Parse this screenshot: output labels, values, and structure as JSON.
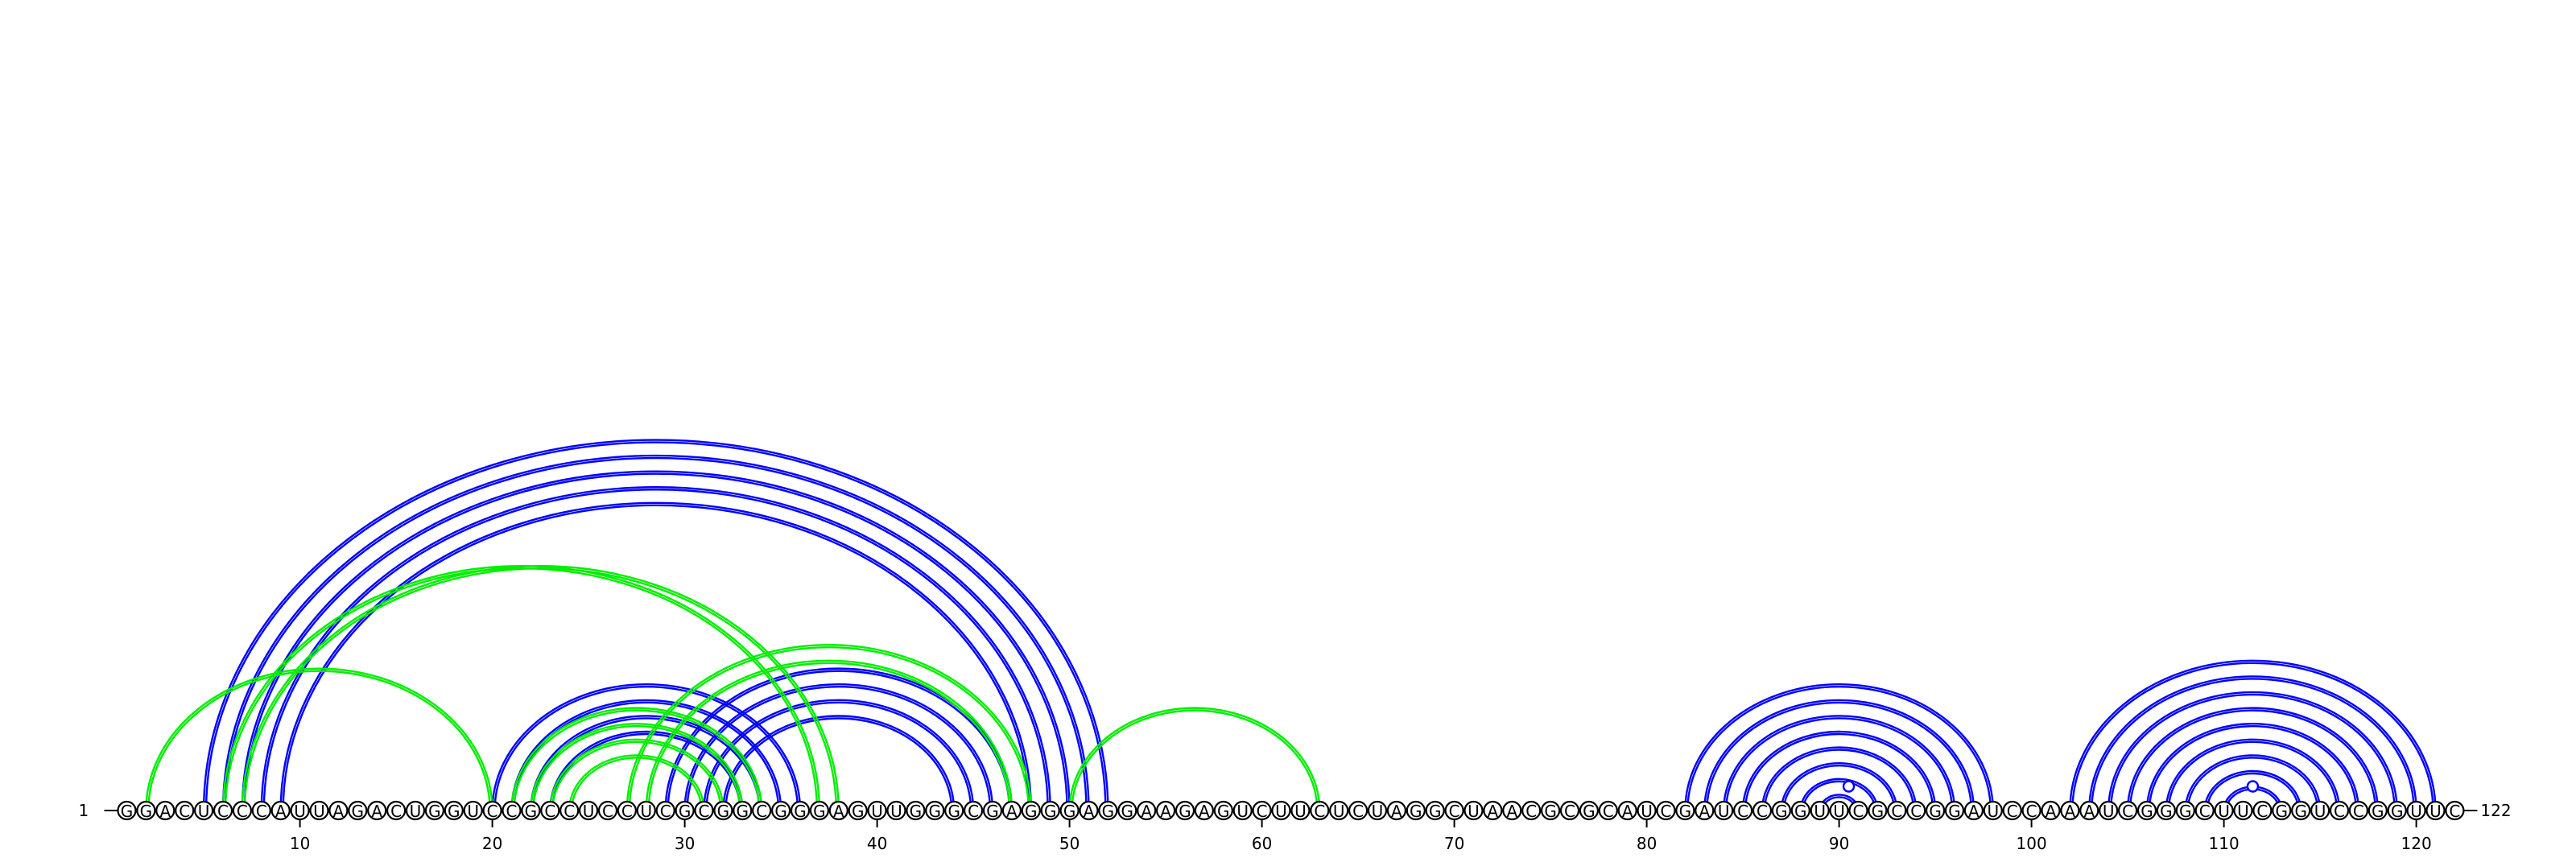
{
  "sequence": "GGACUCCCAUUAGACUGGUCCGCCUCCUCGCGGCGGGAGUUGGGCGAGGGAGGAAGAGUCUUCUCUAGGCUAACGCGCAUCGAUCCGGUUCGCCGGAUCCAAAUCGGGCUUCGGUCCGGUUC",
  "start_label": "1",
  "end_label": "122",
  "ticks": [
    10,
    20,
    30,
    40,
    50,
    60,
    70,
    80,
    90,
    100,
    110,
    120
  ],
  "colors": {
    "structure_a": "#0000ff",
    "structure_b": "#00ee00",
    "outline": "#000000"
  },
  "arcs": [
    {
      "i": 5,
      "j": 52,
      "color": "structure_a"
    },
    {
      "i": 6,
      "j": 51,
      "color": "structure_a"
    },
    {
      "i": 7,
      "j": 50,
      "color": "structure_a"
    },
    {
      "i": 8,
      "j": 49,
      "color": "structure_a"
    },
    {
      "i": 9,
      "j": 48,
      "color": "structure_a"
    },
    {
      "i": 20,
      "j": 36,
      "color": "structure_a"
    },
    {
      "i": 21,
      "j": 35,
      "color": "structure_a"
    },
    {
      "i": 22,
      "j": 34,
      "color": "structure_a"
    },
    {
      "i": 23,
      "j": 33,
      "color": "structure_a"
    },
    {
      "i": 29,
      "j": 47,
      "color": "structure_a"
    },
    {
      "i": 30,
      "j": 46,
      "color": "structure_a"
    },
    {
      "i": 31,
      "j": 45,
      "color": "structure_a"
    },
    {
      "i": 32,
      "j": 44,
      "color": "structure_a"
    },
    {
      "i": 2,
      "j": 20,
      "color": "structure_b"
    },
    {
      "i": 6,
      "j": 37,
      "color": "structure_b"
    },
    {
      "i": 7,
      "j": 38,
      "color": "structure_b"
    },
    {
      "i": 21,
      "j": 34,
      "color": "structure_b"
    },
    {
      "i": 22,
      "j": 33,
      "color": "structure_b"
    },
    {
      "i": 23,
      "j": 32,
      "color": "structure_b"
    },
    {
      "i": 24,
      "j": 31,
      "color": "structure_b"
    },
    {
      "i": 27,
      "j": 48,
      "color": "structure_b"
    },
    {
      "i": 28,
      "j": 47,
      "color": "structure_b"
    },
    {
      "i": 50,
      "j": 63,
      "color": "structure_b"
    },
    {
      "i": 82,
      "j": 98,
      "color": "structure_a"
    },
    {
      "i": 83,
      "j": 97,
      "color": "structure_a"
    },
    {
      "i": 84,
      "j": 96,
      "color": "structure_a"
    },
    {
      "i": 85,
      "j": 95,
      "color": "structure_a"
    },
    {
      "i": 86,
      "j": 94,
      "color": "structure_a"
    },
    {
      "i": 87,
      "j": 93,
      "color": "structure_a"
    },
    {
      "i": 88,
      "j": 92,
      "color": "structure_a"
    },
    {
      "i": 89,
      "j": 91,
      "color": "structure_a"
    },
    {
      "i": 102,
      "j": 121,
      "color": "structure_a"
    },
    {
      "i": 103,
      "j": 120,
      "color": "structure_a"
    },
    {
      "i": 104,
      "j": 119,
      "color": "structure_a"
    },
    {
      "i": 105,
      "j": 118,
      "color": "structure_a"
    },
    {
      "i": 106,
      "j": 117,
      "color": "structure_a"
    },
    {
      "i": 107,
      "j": 116,
      "color": "structure_a"
    },
    {
      "i": 108,
      "j": 115,
      "color": "structure_a"
    },
    {
      "i": 109,
      "j": 114,
      "color": "structure_a"
    },
    {
      "i": 110,
      "j": 113,
      "color": "structure_a"
    }
  ],
  "loop_markers": [
    90.5,
    111.5
  ]
}
